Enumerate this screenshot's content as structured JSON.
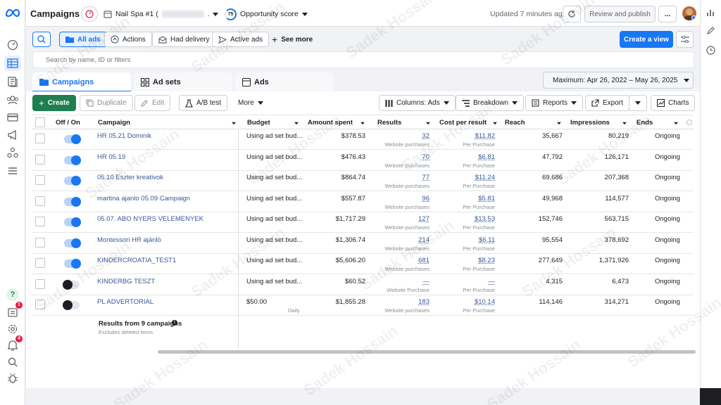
{
  "topbar": {
    "title": "Campaigns",
    "account_name": "Nail Spa #1 (",
    "score_value": "75",
    "score_label": "Opportunity score",
    "updated": "Updated 7 minutes ago",
    "review_publish": "Review and publish",
    "more": "..."
  },
  "toolbar": {
    "all_ads": "All ads",
    "actions": "Actions",
    "had_delivery": "Had delivery",
    "active_ads": "Active ads",
    "see_more": "See more",
    "create_view": "Create a view"
  },
  "search": {
    "placeholder": "Search by name, ID or filters"
  },
  "tabs": [
    {
      "label": "Campaigns"
    },
    {
      "label": "Ad sets"
    },
    {
      "label": "Ads"
    }
  ],
  "date_range": "Maximum: Apr 26, 2022 – May 26, 2025",
  "actions": {
    "create": "Create",
    "duplicate": "Duplicate",
    "edit": "Edit",
    "ab_test": "A/B test",
    "more": "More",
    "columns": "Columns: Ads",
    "breakdown": "Breakdown",
    "reports": "Reports",
    "export": "Export",
    "charts": "Charts"
  },
  "table": {
    "headers": {
      "onoff": "Off / On",
      "campaign": "Campaign",
      "budget": "Budget",
      "amount_spent": "Amount spent",
      "results": "Results",
      "cost_per_result": "Cost per result",
      "reach": "Reach",
      "impressions": "Impressions",
      "ends": "Ends"
    },
    "rows": [
      {
        "on": true,
        "name": "HR 05.21 Dominik",
        "budget": "Using ad set bud...",
        "budget_sub": "",
        "spent": "$378.53",
        "results": "32",
        "results_sub": "Website purchases",
        "cpr": "$11.82",
        "cpr_sub": "Per Purchase",
        "reach": "35,667",
        "impressions": "80,219",
        "ends": "Ongoing"
      },
      {
        "on": true,
        "name": "HR 05.19",
        "budget": "Using ad set bud...",
        "budget_sub": "",
        "spent": "$476.43",
        "results": "70",
        "results_sub": "Website purchases",
        "cpr": "$6.81",
        "cpr_sub": "Per Purchase",
        "reach": "47,792",
        "impressions": "126,171",
        "ends": "Ongoing"
      },
      {
        "on": true,
        "name": "05.10 Eszter kreativok",
        "budget": "Using ad set bud...",
        "budget_sub": "",
        "spent": "$864.74",
        "results": "77",
        "results_sub": "Website purchases",
        "cpr": "$11.24",
        "cpr_sub": "Per Purchase",
        "reach": "69,686",
        "impressions": "207,368",
        "ends": "Ongoing"
      },
      {
        "on": true,
        "name": "martina ajanlo 05.09 Campaign",
        "budget": "Using ad set bud...",
        "budget_sub": "",
        "spent": "$557.87",
        "results": "96",
        "results_sub": "Website purchases",
        "cpr": "$5.81",
        "cpr_sub": "Per Purchase",
        "reach": "49,968",
        "impressions": "114,577",
        "ends": "Ongoing"
      },
      {
        "on": true,
        "name": "05.07. ABO NYERS VELEMENYEK",
        "budget": "Using ad set bud...",
        "budget_sub": "",
        "spent": "$1,717.29",
        "results": "127",
        "results_sub": "Website purchases",
        "cpr": "$13.53",
        "cpr_sub": "Per Purchase",
        "reach": "152,746",
        "impressions": "563,715",
        "ends": "Ongoing"
      },
      {
        "on": true,
        "name": "Montessori HR ajánló",
        "budget": "Using ad set bud...",
        "budget_sub": "",
        "spent": "$1,306.74",
        "results": "214",
        "results_sub": "Website purchases",
        "cpr": "$6.11",
        "cpr_sub": "Per Purchase",
        "reach": "95,554",
        "impressions": "378,692",
        "ends": "Ongoing"
      },
      {
        "on": true,
        "name": "KINDERCROATIA_TEST1",
        "budget": "Using ad set bud...",
        "budget_sub": "",
        "spent": "$5,606.20",
        "results": "681",
        "results_sub": "Website purchases",
        "cpr": "$8.23",
        "cpr_sub": "Per Purchase",
        "reach": "277,649",
        "impressions": "1,371,926",
        "ends": "Ongoing"
      },
      {
        "on": false,
        "name": "KINDERBG TESZT",
        "budget": "Using ad set bud...",
        "budget_sub": "",
        "spent": "$60.52",
        "results": "—",
        "results_sub": "Website Purchase",
        "cpr": "—",
        "cpr_sub": "Per Purchase",
        "reach": "4,315",
        "impressions": "6,473",
        "ends": "Ongoing"
      },
      {
        "on": false,
        "name": "PL ADVERTORIAL",
        "budget": "$50.00",
        "budget_sub": "Daily",
        "spent": "$1,855.28",
        "results": "183",
        "results_sub": "Website purchases",
        "cpr": "$10.14",
        "cpr_sub": "Per Purchase",
        "reach": "114,146",
        "impressions": "314,271",
        "ends": "Ongoing"
      }
    ],
    "summary": "Results from 9 campaigns",
    "summary_sub": "Excludes deleted items"
  },
  "watermark": "Sadek Hossain",
  "colors": {
    "primary": "#1877f2",
    "create_green": "#1e7e4f",
    "link": "#385898",
    "badge_red": "#e41e3f"
  }
}
